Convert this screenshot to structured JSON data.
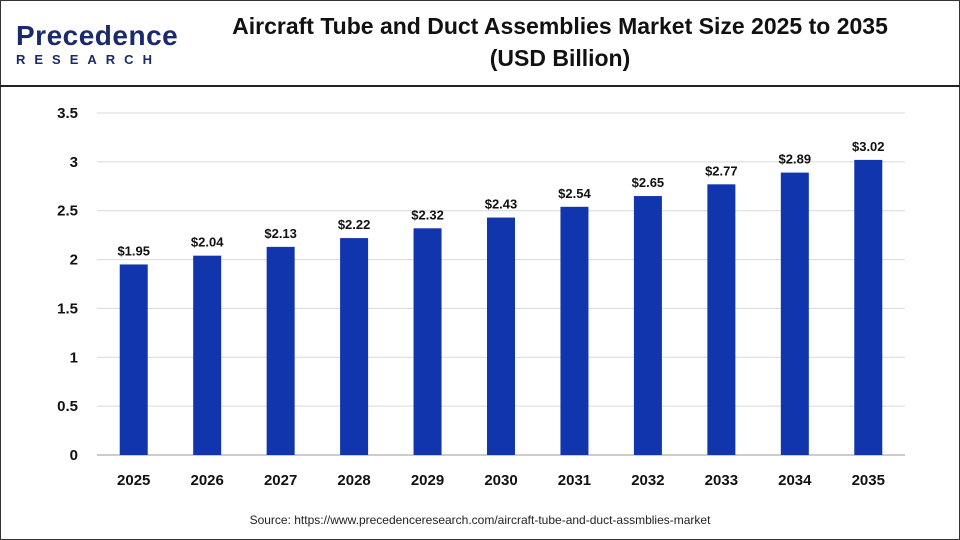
{
  "logo": {
    "line1": "Precedence",
    "line2": "RESEARCH"
  },
  "title_line1": "Aircraft Tube and Duct Assemblies Market Size 2025 to 2035",
  "title_line2": "(USD Billion)",
  "source": "Source: https://www.precedenceresearch.com/aircraft-tube-and-duct-assmblies-market",
  "colors": {
    "bar": "#1035AC",
    "grid": "#d9d9d9"
  },
  "chart_data": {
    "type": "bar",
    "title": "Aircraft Tube and Duct Assemblies Market Size 2025 to 2035 (USD Billion)",
    "categories": [
      "2025",
      "2026",
      "2027",
      "2028",
      "2029",
      "2030",
      "2031",
      "2032",
      "2033",
      "2034",
      "2035"
    ],
    "values": [
      1.95,
      2.04,
      2.13,
      2.22,
      2.32,
      2.43,
      2.54,
      2.65,
      2.77,
      2.89,
      3.02
    ],
    "data_labels": [
      "$1.95",
      "$2.04",
      "$2.13",
      "$2.22",
      "$2.32",
      "$2.43",
      "$2.54",
      "$2.65",
      "$2.77",
      "$2.89",
      "$3.02"
    ],
    "yticks": [
      "0",
      "0.5",
      "1",
      "1.5",
      "2",
      "2.5",
      "3",
      "3.5"
    ],
    "ylim": [
      0,
      3.5
    ],
    "xlabel": "",
    "ylabel": "",
    "grid": true,
    "legend": "none"
  }
}
